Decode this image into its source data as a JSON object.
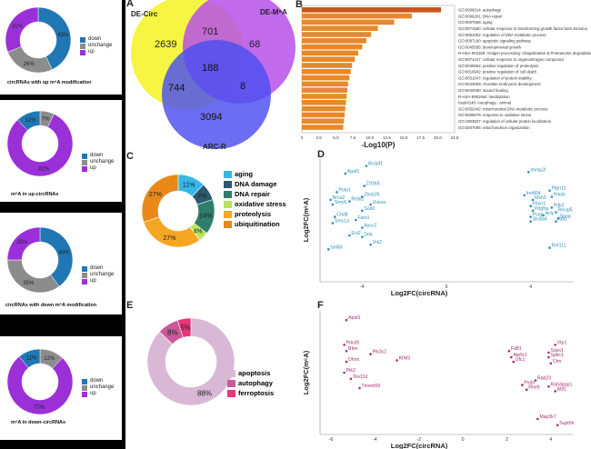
{
  "panel_labels": {
    "A": "A",
    "B": "B",
    "C": "C",
    "D": "D",
    "E": "E",
    "F": "F"
  },
  "left_panels": [
    {
      "caption": "circRNAs with up m⁶A modification",
      "values": [
        "43%",
        "26%",
        "31%"
      ],
      "legend": [
        "down",
        "unchange",
        "up"
      ]
    },
    {
      "caption": "m⁶A in up-circRNAs",
      "values": [
        "12%",
        "7%",
        "81%"
      ],
      "legend": [
        "down",
        "unchange",
        "up"
      ]
    },
    {
      "caption": "circRNAs with down m⁶A modification",
      "values": [
        "40%",
        "35%",
        "25%"
      ],
      "legend": [
        "down",
        "unchange",
        "up"
      ]
    },
    {
      "caption": "m⁶A in down-circRNAs",
      "values": [
        "11%",
        "12%",
        "77%"
      ],
      "legend": [
        "down",
        "unchange",
        "up"
      ]
    }
  ],
  "colors": {
    "down": "#1f77b4",
    "unchange": "#8c8c8c",
    "up": "#9b30d9",
    "venn_yellow": "#f5f542",
    "venn_purple": "#b650e8",
    "venn_blue": "#4a4ef0",
    "bar": "#e8892a",
    "bar_top": "#c9561b",
    "teal": "#2e8fb5",
    "magenta": "#a0306e"
  },
  "venn": {
    "sets": [
      "DE-Circ",
      "DE-M⁶A",
      "ARC-R"
    ],
    "regions": {
      "circ_only": "2639",
      "circ_m6a": "701",
      "m6a_only": "68",
      "all": "188",
      "circ_arc": "744",
      "m6a_arc": "8",
      "arc_only": "3094"
    }
  },
  "chart_data": [
    {
      "type": "bar",
      "orientation": "horizontal",
      "xlabel": "-Log10(P)",
      "xticks": [
        "0",
        "2.5",
        "5.0",
        "7.5",
        "10.0",
        "12.5",
        "15.0",
        "17.5",
        "20.0",
        "22.5"
      ],
      "categories": [
        "GO:0006914: autophagy",
        "GO:0006281: DNA repair",
        "GO:0007568: aging",
        "GO:0071560: cellular response to transforming growth factor beta stimulus",
        "GO:0051052: regulation of DNA metabolic process",
        "GO:0097190: apoptotic signaling pathway",
        "GO:0045595: developmental growth",
        "R-HSA-983168: Antigen processing: Ubiquitination & Proteasome degradation",
        "GO:0071417: cellular response to organonitrogen compound",
        "GO:0045862: positive regulation of proteolysis",
        "GO:0010942: positive regulation of cell death",
        "GO:0031647: regulation of protein stability",
        "GO:0043009: chordate embryonic development",
        "GO:0042060: wound healing",
        "R-HSA-8951664: Neddylation",
        "hsa04140: Autophagy - animal",
        "GO:0032042: mitochondrial DNA metabolic process",
        "GO:0006979: response to oxidative stress",
        "GO:1903827: regulation of cellular protein localization",
        "GO:0007005: mitochondrion organization"
      ],
      "values": [
        20.5,
        16.2,
        13.6,
        11.2,
        10.2,
        9.5,
        8.9,
        8.3,
        7.8,
        7.4,
        7.2,
        7.0,
        6.8,
        6.7,
        6.6,
        6.5,
        6.4,
        6.3,
        6.2,
        6.1
      ],
      "xlim": [
        0,
        22.5
      ]
    },
    {
      "type": "pie",
      "labels": [
        "aging",
        "DNA damage",
        "DNA repair",
        "oxidative stress",
        "proteolysis",
        "ubiquitination"
      ],
      "values": [
        11,
        7,
        14,
        4,
        27,
        27
      ],
      "shown_labels": [
        "11%",
        "7%",
        "14%",
        "4%",
        "27%",
        "27%"
      ],
      "colors": [
        "#36b7e8",
        "#2a5a73",
        "#2f7d6b",
        "#b7e55a",
        "#f5a623",
        "#e8891a"
      ]
    },
    {
      "type": "scatter",
      "xlabel": "Log2FC(circRNA)",
      "ylabel": "Log2FC(m⁶A)",
      "xticks": [
        "-4",
        "0",
        "4"
      ],
      "xlim": [
        -6,
        6
      ],
      "ylim": [
        -4,
        4
      ],
      "points": [
        {
          "label": "Bcdaf1",
          "x": -3.8,
          "y": 3.5
        },
        {
          "label": "Apaf1",
          "x": -4.8,
          "y": 3.0
        },
        {
          "label": "Zrf365",
          "x": -3.9,
          "y": 2.2
        },
        {
          "label": "Pola1",
          "x": -5.2,
          "y": 1.8
        },
        {
          "label": "Zbvb26",
          "x": -4.0,
          "y": 1.5
        },
        {
          "label": "Brca2",
          "x": -5.5,
          "y": 1.3
        },
        {
          "label": "Rrdd2",
          "x": -4.6,
          "y": 1.2
        },
        {
          "label": "Smc6",
          "x": -5.4,
          "y": 1.0
        },
        {
          "label": "Uvssa",
          "x": -3.6,
          "y": 1.0
        },
        {
          "label": "Sod2",
          "x": -4.0,
          "y": 0.6
        },
        {
          "label": "Chd8",
          "x": -5.3,
          "y": 0.2
        },
        {
          "label": "Fancl",
          "x": -4.3,
          "y": 0.0
        },
        {
          "label": "Smc1a",
          "x": -5.4,
          "y": -0.2
        },
        {
          "label": "Ascc2",
          "x": -4.0,
          "y": -0.5
        },
        {
          "label": "Ect2",
          "x": -4.6,
          "y": -1.0
        },
        {
          "label": "Dek",
          "x": -4.0,
          "y": -1.1
        },
        {
          "label": "Vrk2",
          "x": -3.6,
          "y": -1.6
        },
        {
          "label": "Sel8d",
          "x": -5.6,
          "y": -1.9
        },
        {
          "label": "Immp2l",
          "x": 3.9,
          "y": 3.1
        },
        {
          "label": "Ptpn11",
          "x": 4.9,
          "y": 1.9
        },
        {
          "label": "Ino80d",
          "x": 3.7,
          "y": 1.6
        },
        {
          "label": "Prkdc",
          "x": 5.0,
          "y": 1.5
        },
        {
          "label": "Msh3",
          "x": 4.1,
          "y": 1.3
        },
        {
          "label": "Fbxo1",
          "x": 4.0,
          "y": 0.9
        },
        {
          "label": "Pdk2",
          "x": 5.0,
          "y": 0.8
        },
        {
          "label": "Pdgfra",
          "x": 4.1,
          "y": 0.6
        },
        {
          "label": "Recql5",
          "x": 5.2,
          "y": 0.5
        },
        {
          "label": "Psap",
          "x": 4.0,
          "y": 0.2
        },
        {
          "label": "Acly",
          "x": 4.6,
          "y": 0.3
        },
        {
          "label": "Spop",
          "x": 5.3,
          "y": 0.1
        },
        {
          "label": "Slc8a4",
          "x": 4.0,
          "y": -0.1
        },
        {
          "label": "Abl1",
          "x": 5.2,
          "y": -0.1
        },
        {
          "label": "Rnf111",
          "x": 4.9,
          "y": -1.8
        }
      ]
    },
    {
      "type": "pie",
      "labels": [
        "apoptosis",
        "autophagy",
        "ferroptosis"
      ],
      "values": [
        88,
        8,
        5
      ],
      "shown_labels": [
        "88%",
        "8%",
        "5%"
      ],
      "colors": [
        "#d9b8d6",
        "#c95a9b",
        "#e8357a"
      ]
    },
    {
      "type": "scatter",
      "xlabel": "Log2FC(circRNA)",
      "ylabel": "Log2FC(m⁶A)",
      "xticks": [
        "-6",
        "-4",
        "-2",
        "0",
        "2",
        "4"
      ],
      "xlim": [
        -6.5,
        5
      ],
      "ylim": [
        -4,
        4
      ],
      "points": [
        {
          "label": "Apaf1",
          "x": -5.3,
          "y": 3.4
        },
        {
          "label": "Pdcd5",
          "x": -5.4,
          "y": 1.8
        },
        {
          "label": "Bfen",
          "x": -5.3,
          "y": 1.4
        },
        {
          "label": "Pik3c2",
          "x": -4.2,
          "y": 1.2
        },
        {
          "label": "KING",
          "x": -3.0,
          "y": 0.8
        },
        {
          "label": "Dhnx",
          "x": -5.3,
          "y": 0.7
        },
        {
          "label": "Ptk2",
          "x": -5.4,
          "y": 0.0
        },
        {
          "label": "Tos11d",
          "x": -5.1,
          "y": -0.4
        },
        {
          "label": "Tmem59",
          "x": -4.7,
          "y": -1.0
        },
        {
          "label": "Vtp1",
          "x": 4.2,
          "y": 1.8
        },
        {
          "label": "Fdft1",
          "x": 2.1,
          "y": 1.4
        },
        {
          "label": "Sqss1",
          "x": 3.9,
          "y": 1.3
        },
        {
          "label": "Atp5r1",
          "x": 2.2,
          "y": 1.0
        },
        {
          "label": "Sptic1",
          "x": 3.9,
          "y": 1.0
        },
        {
          "label": "Ufc1",
          "x": 2.3,
          "y": 0.7
        },
        {
          "label": "Ctm",
          "x": 4.0,
          "y": 0.6
        },
        {
          "label": "Rab23",
          "x": 3.3,
          "y": -0.5
        },
        {
          "label": "Pxdn",
          "x": 2.7,
          "y": -0.8
        },
        {
          "label": "Rab3gap1",
          "x": 3.9,
          "y": -0.9
        },
        {
          "label": "Rheb",
          "x": 2.9,
          "y": -1.1
        },
        {
          "label": "Abl1",
          "x": 4.2,
          "y": -1.2
        },
        {
          "label": "Map3k7",
          "x": 3.4,
          "y": -3.0
        },
        {
          "label": "Supt5h",
          "x": 4.3,
          "y": -3.4
        }
      ]
    }
  ]
}
